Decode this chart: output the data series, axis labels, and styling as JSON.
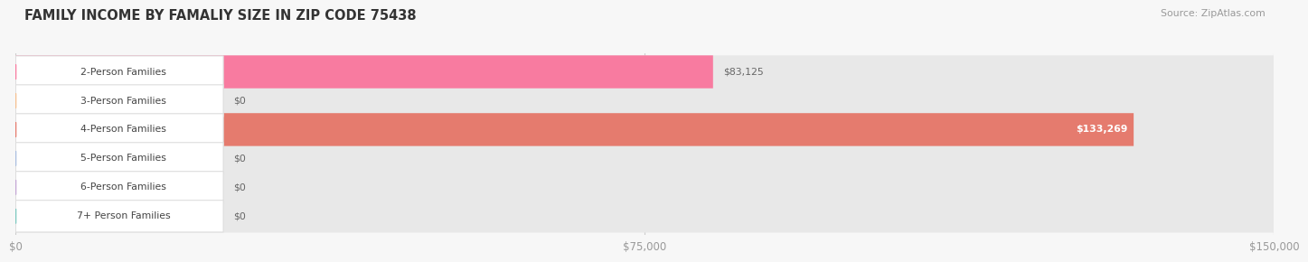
{
  "title": "FAMILY INCOME BY FAMALIY SIZE IN ZIP CODE 75438",
  "source": "Source: ZipAtlas.com",
  "categories": [
    "2-Person Families",
    "3-Person Families",
    "4-Person Families",
    "5-Person Families",
    "6-Person Families",
    "7+ Person Families"
  ],
  "values": [
    83125,
    0,
    133269,
    0,
    0,
    0
  ],
  "bar_colors": [
    "#F87BA0",
    "#F5C090",
    "#E57B6E",
    "#AABFE0",
    "#C4A8D5",
    "#7DC8C0"
  ],
  "value_labels": [
    "$83,125",
    "$0",
    "$133,269",
    "$0",
    "$0",
    "$0"
  ],
  "value_inside": [
    false,
    false,
    true,
    false,
    false,
    false
  ],
  "xlim_max": 150000,
  "xticks": [
    0,
    75000,
    150000
  ],
  "xtick_labels": [
    "$0",
    "$75,000",
    "$150,000"
  ],
  "bg_color": "#f7f7f7",
  "row_colors": [
    "#ffffff",
    "#f0f0f0",
    "#ffffff",
    "#f0f0f0",
    "#ffffff",
    "#f0f0f0"
  ],
  "track_color": "#e8e8e8",
  "label_box_color": "#ffffff",
  "title_color": "#333333",
  "source_color": "#999999",
  "value_text_color_outside": "#666666",
  "value_text_color_inside": "#ffffff"
}
